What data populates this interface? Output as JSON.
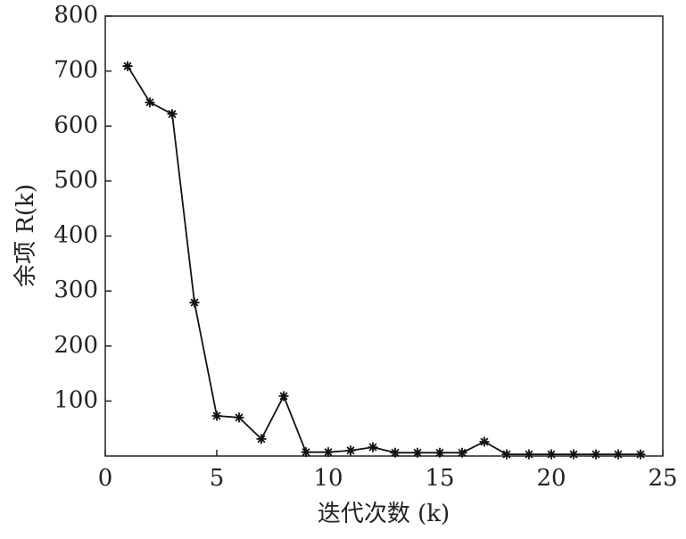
{
  "chart_data": {
    "type": "line",
    "x_label": "迭代次数 (k)",
    "y_label": "余项 R(k)",
    "x": [
      1,
      2,
      3,
      4,
      5,
      6,
      7,
      8,
      9,
      10,
      11,
      12,
      13,
      14,
      15,
      16,
      17,
      18,
      19,
      20,
      21,
      22,
      23,
      24
    ],
    "series": [
      {
        "color": "#111111",
        "values": [
          709,
          643,
          622,
          279,
          73,
          70,
          31,
          109,
          7,
          7,
          10,
          16,
          6,
          6,
          6,
          6,
          26,
          3,
          3,
          3,
          3,
          3,
          3,
          3
        ]
      }
    ],
    "xlim": [
      0,
      25
    ],
    "xticks": [
      0,
      5,
      10,
      15,
      20,
      25
    ],
    "ylim": [
      0,
      800
    ],
    "yticks": [
      100,
      200,
      300,
      400,
      500,
      600,
      700,
      800
    ],
    "marker": "asterisk"
  }
}
